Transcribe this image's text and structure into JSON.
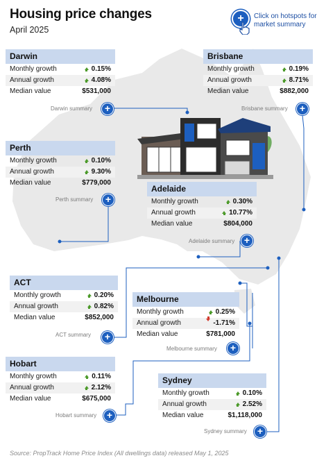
{
  "header": {
    "title": "Housing price changes",
    "subtitle": "April 2025",
    "hint": "Click on hotspots for market summary"
  },
  "labels": {
    "monthly": "Monthly growth",
    "annual": "Annual growth",
    "median": "Median value"
  },
  "regions": {
    "darwin": {
      "name": "Darwin",
      "monthly": "0.15%",
      "annual": "4.08%",
      "median": "$531,000",
      "annual_trend": "up",
      "summary": "Darwin summary"
    },
    "brisbane": {
      "name": "Brisbane",
      "monthly": "0.19%",
      "annual": "8.71%",
      "median": "$882,000",
      "annual_trend": "up",
      "summary": "Brisbane summary"
    },
    "perth": {
      "name": "Perth",
      "monthly": "0.10%",
      "annual": "9.30%",
      "median": "$779,000",
      "annual_trend": "up",
      "summary": "Perth summary"
    },
    "adelaide": {
      "name": "Adelaide",
      "monthly": "0.30%",
      "annual": "10.77%",
      "median": "$804,000",
      "annual_trend": "up",
      "summary": "Adelaide summary"
    },
    "act": {
      "name": "ACT",
      "monthly": "0.20%",
      "annual": "0.82%",
      "median": "$852,000",
      "annual_trend": "up",
      "summary": "ACT summary"
    },
    "melbourne": {
      "name": "Melbourne",
      "monthly": "0.25%",
      "annual": "-1.71%",
      "median": "$781,000",
      "annual_trend": "down",
      "summary": "Melbourne summary"
    },
    "hobart": {
      "name": "Hobart",
      "monthly": "0.11%",
      "annual": "2.12%",
      "median": "$675,000",
      "annual_trend": "up",
      "summary": "Hobart summary"
    },
    "sydney": {
      "name": "Sydney",
      "monthly": "0.10%",
      "annual": "2.52%",
      "median": "$1,118,000",
      "annual_trend": "up",
      "summary": "Sydney summary"
    }
  },
  "source": "Source: PropTrack Home Price Index  (All dwellings data) released May 1, 2025",
  "colors": {
    "accent": "#1d5fbf",
    "card_header": "#c9d8ee",
    "map": "#e9e9e9",
    "up": "#4c9a2a",
    "down": "#d23b2e"
  }
}
